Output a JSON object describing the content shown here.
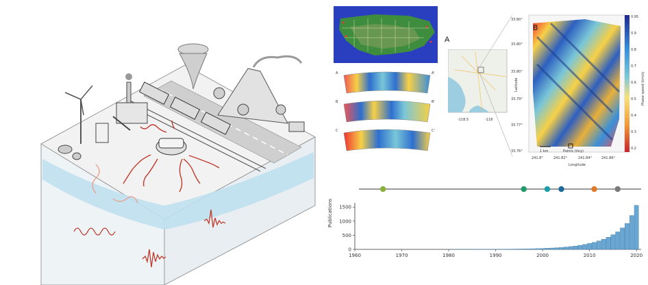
{
  "panels": {
    "panel_a_label": "A",
    "panel_b_label": "B",
    "slice_labels": [
      {
        "left": "A",
        "right": "A'"
      },
      {
        "left": "B",
        "right": "B'"
      },
      {
        "left": "C",
        "right": "C'"
      }
    ],
    "map_b": {
      "ylabel": "Latitude",
      "xlabel": "Longitude",
      "yticks": [
        "33.80°",
        "33.80°",
        "33.80°",
        "33.79°",
        "33.77°",
        "33.76°"
      ],
      "xticks": [
        "241.8°",
        "241.82°",
        "241.84°",
        "241.86°"
      ],
      "scale_label": "1 km",
      "points_label": "Points (tiny)",
      "colorbar_label": "Phase speed (km/s)",
      "colorbar_ticks": [
        "0.95",
        "0.9",
        "0.8",
        "0.7",
        "0.6",
        "0.5",
        "0.4",
        "0.3",
        "0.2"
      ]
    },
    "inset_map_ticks": [
      "-118.5",
      "-118"
    ]
  },
  "timeline": {
    "marker_colors": [
      "#8bb03a",
      "#1f9a6a",
      "#1aa0a8",
      "#1b6a98",
      "#e07a2a",
      "#7a7a7a"
    ]
  },
  "chart_data": {
    "type": "bar",
    "ylabel": "Publications",
    "xlabel": "",
    "x": [
      1960,
      1961,
      1962,
      1963,
      1964,
      1965,
      1966,
      1967,
      1968,
      1969,
      1970,
      1971,
      1972,
      1973,
      1974,
      1975,
      1976,
      1977,
      1978,
      1979,
      1980,
      1981,
      1982,
      1983,
      1984,
      1985,
      1986,
      1987,
      1988,
      1989,
      1990,
      1991,
      1992,
      1993,
      1994,
      1995,
      1996,
      1997,
      1998,
      1999,
      2000,
      2001,
      2002,
      2003,
      2004,
      2005,
      2006,
      2007,
      2008,
      2009,
      2010,
      2011,
      2012,
      2013,
      2014,
      2015,
      2016,
      2017,
      2018,
      2019,
      2020
    ],
    "values": [
      0,
      0,
      0,
      0,
      0,
      0,
      0,
      0,
      0,
      0,
      0,
      0,
      0,
      0,
      0,
      0,
      0,
      0,
      0,
      0,
      0,
      1,
      1,
      1,
      2,
      2,
      2,
      3,
      3,
      4,
      4,
      5,
      6,
      8,
      10,
      12,
      15,
      18,
      22,
      27,
      33,
      40,
      48,
      58,
      70,
      84,
      100,
      120,
      145,
      175,
      210,
      250,
      300,
      360,
      430,
      520,
      620,
      760,
      920,
      1200,
      1560
    ],
    "xticks": [
      "1960",
      "1970",
      "1980",
      "1990",
      "2000",
      "2010",
      "2020"
    ],
    "yticks": [
      "0",
      "500",
      "1000",
      "1500"
    ],
    "xlim": [
      1960,
      2021
    ],
    "ylim": [
      0,
      1650
    ],
    "bar_color": "#6aa6d2",
    "grid": false
  }
}
